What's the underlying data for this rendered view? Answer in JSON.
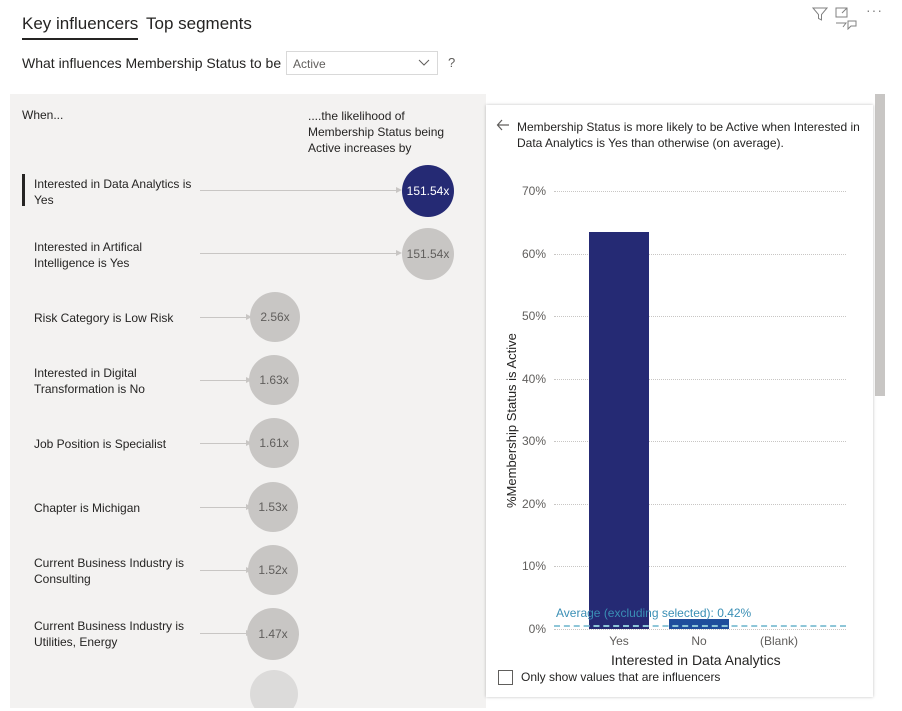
{
  "tabs": [
    {
      "label": "Key influencers"
    },
    {
      "label": "Top segments"
    }
  ],
  "question": {
    "text": "What influences Membership Status to be",
    "selected_value": "Active",
    "help": "?"
  },
  "toolbar": {
    "filter_icon": "filter-icon",
    "focus_icon": "focus-mode-icon",
    "more_icon": "more-options-icon",
    "more_label": "···"
  },
  "left": {
    "when_label": "When...",
    "likelihood_label": "....the likelihood of Membership Status being Active increases by",
    "influencers": [
      {
        "label": "Interested in Data Analytics is Yes",
        "value": "151.54x",
        "selected": true
      },
      {
        "label": "Interested in Artifical Intelligence is Yes",
        "value": "151.54x",
        "selected": false
      },
      {
        "label": "Risk Category is Low Risk",
        "value": "2.56x",
        "selected": false
      },
      {
        "label": "Interested in Digital Transformation is No",
        "value": "1.63x",
        "selected": false
      },
      {
        "label": "Job Position is Specialist",
        "value": "1.61x",
        "selected": false
      },
      {
        "label": "Chapter is Michigan",
        "value": "1.53x",
        "selected": false
      },
      {
        "label": "Current Business Industry is Consulting",
        "value": "1.52x",
        "selected": false
      },
      {
        "label": "Current Business Industry is Utilities, Energy",
        "value": "1.47x",
        "selected": false
      }
    ]
  },
  "right": {
    "back_icon": "back-arrow-icon",
    "title": "Membership Status is more likely to be Active when Interested in Data Analytics is Yes than otherwise (on average).",
    "average_label": "Average (excluding selected): 0.42%",
    "checkbox_label": "Only show values that are influencers",
    "checkbox_checked": false
  },
  "chart_data": {
    "type": "bar",
    "categories": [
      "Yes",
      "No",
      "(Blank)"
    ],
    "values": [
      63.5,
      1.6,
      0
    ],
    "average": 0.42,
    "ylabel": "%Membership Status is Active",
    "xlabel": "Interested in Data Analytics",
    "ylim": [
      0,
      70
    ],
    "yticks": [
      "0%",
      "10%",
      "20%",
      "30%",
      "40%",
      "50%",
      "60%",
      "70%"
    ],
    "colors": [
      "#252a74",
      "#1f4e9c",
      "#252a74"
    ],
    "grid": true
  }
}
